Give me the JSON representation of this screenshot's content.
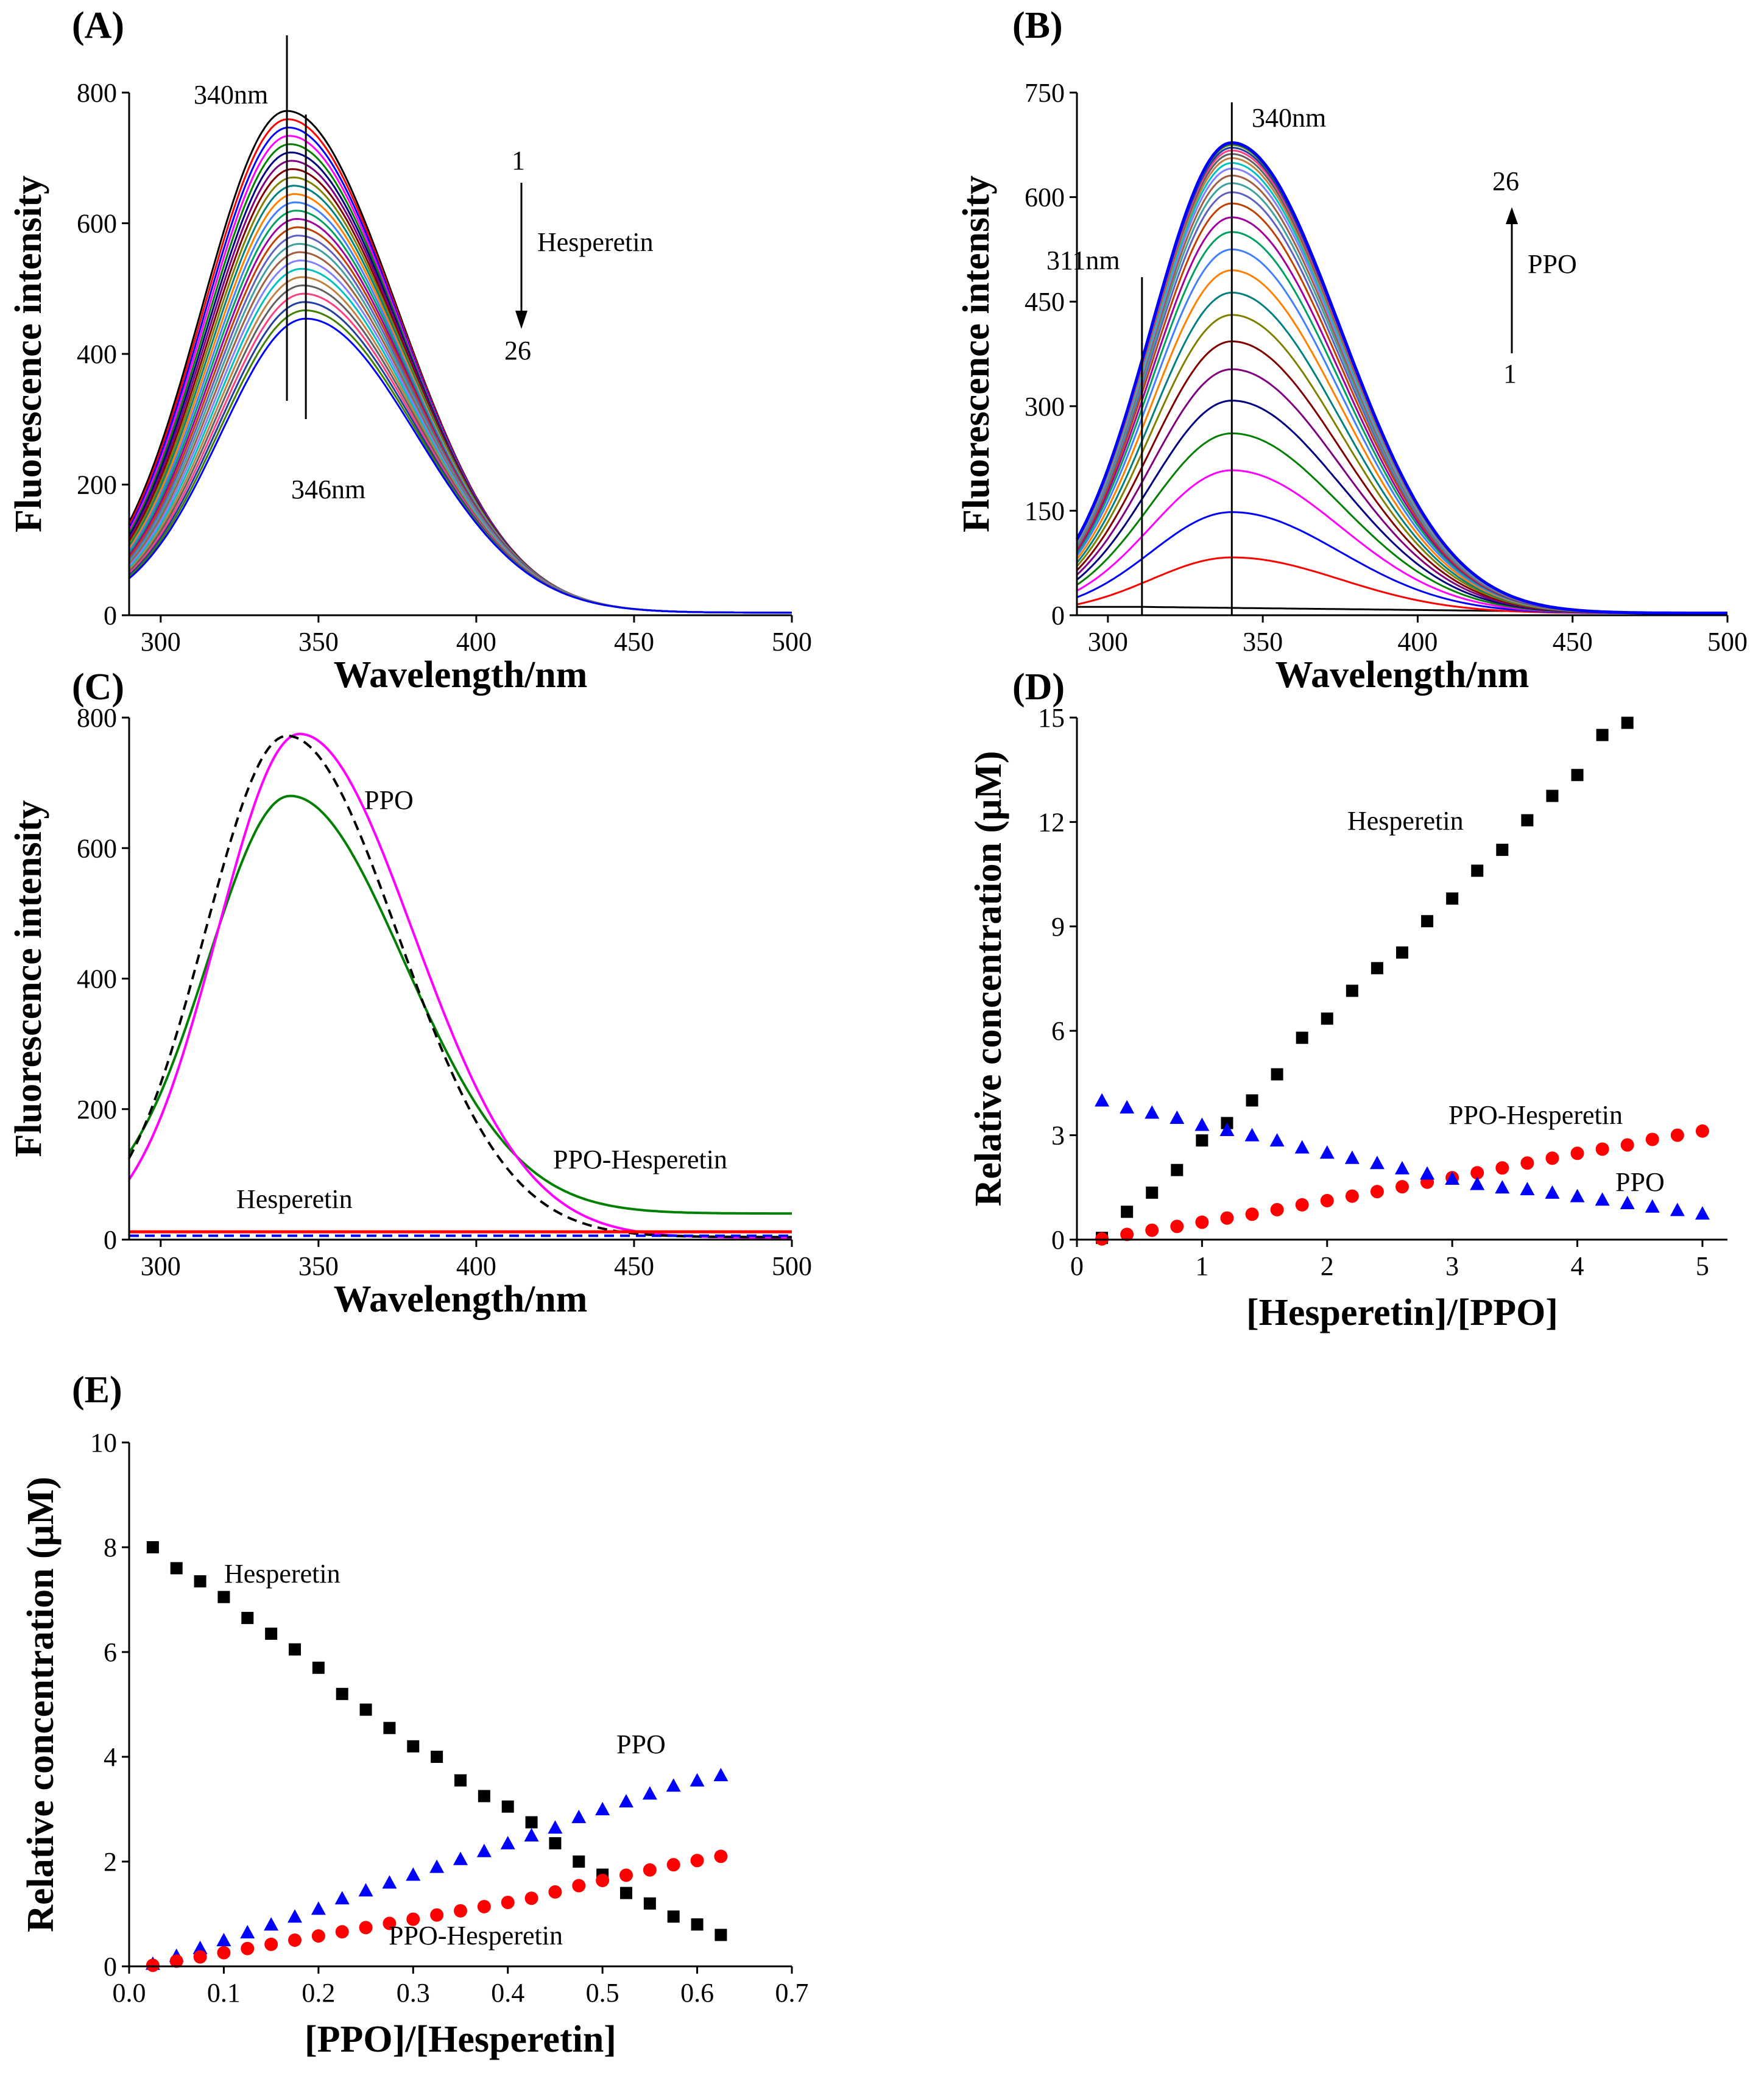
{
  "chart_data": [
    {
      "panel": "(A)",
      "type": "line",
      "xlabel": "Wavelength/nm",
      "ylabel": "Fluorescence intensity",
      "xlim": [
        290,
        500
      ],
      "ylim": [
        0,
        800
      ],
      "xticks": [
        300,
        350,
        400,
        450,
        500
      ],
      "yticks": [
        0,
        200,
        400,
        600,
        800
      ],
      "curve_count": 26,
      "peak_first": 768,
      "peak_last": 450,
      "peak_x_first": 340,
      "peak_x_last": 346,
      "annotations": {
        "peak_left": "340nm",
        "peak_right": "346nm",
        "arrow_start": "1",
        "arrow_end": "26",
        "arrow_label": "Hesperetin"
      }
    },
    {
      "panel": "(B)",
      "type": "line",
      "xlabel": "Wavelength/nm",
      "ylabel": "Fluorescence intensity",
      "xlim": [
        290,
        500
      ],
      "ylim": [
        0,
        750
      ],
      "xticks": [
        300,
        350,
        400,
        450,
        500
      ],
      "yticks": [
        0,
        150,
        300,
        450,
        600,
        750
      ],
      "curve_count": 26,
      "peaks": [
        10,
        80,
        145,
        205,
        258,
        305,
        350,
        390,
        428,
        460,
        492,
        522,
        547,
        568,
        588,
        604,
        617,
        628,
        638,
        646,
        653,
        659,
        664,
        668,
        672,
        675
      ],
      "annotations": {
        "peak_main": "340nm",
        "peak_minor": "311nm",
        "arrow_start": "1",
        "arrow_end": "26",
        "arrow_label": "PPO"
      }
    },
    {
      "panel": "(C)",
      "type": "line",
      "xlabel": "Wavelength/nm",
      "ylabel": "Fluorescence intensity",
      "xlim": [
        290,
        500
      ],
      "ylim": [
        0,
        800
      ],
      "xticks": [
        300,
        350,
        400,
        450,
        500
      ],
      "yticks": [
        0,
        200,
        400,
        600,
        800
      ],
      "series": [
        {
          "name": "PPO",
          "peak": 772,
          "color": "#ff00ff"
        },
        {
          "name": "PPO-Hesperetin",
          "peak": 680,
          "color": "#008000"
        },
        {
          "name": "dashed",
          "peak": 768,
          "color": "#000000"
        },
        {
          "name": "Hesperetin",
          "peak": 12,
          "color": "#ff0000"
        }
      ],
      "annotations": {
        "ppo": "PPO",
        "complex": "PPO-Hesperetin",
        "hesperetin": "Hesperetin"
      }
    },
    {
      "panel": "(D)",
      "type": "scatter",
      "xlabel": "[Hesperetin]/[PPO]",
      "ylabel": "Relative concentration (μM)",
      "xlim": [
        0,
        5.2
      ],
      "ylim": [
        0,
        15
      ],
      "xticks": [
        0,
        1,
        2,
        3,
        4,
        5
      ],
      "yticks": [
        0,
        3,
        6,
        9,
        12,
        15
      ],
      "x": [
        0.2,
        0.4,
        0.6,
        0.8,
        1.0,
        1.2,
        1.4,
        1.6,
        1.8,
        2.0,
        2.2,
        2.4,
        2.6,
        2.8,
        3.0,
        3.2,
        3.4,
        3.6,
        3.8,
        4.0,
        4.2,
        4.4,
        4.6,
        4.8,
        5.0
      ],
      "series": [
        {
          "name": "Hesperetin",
          "color": "#000000",
          "marker": "square",
          "values": [
            0.05,
            0.8,
            1.35,
            2.0,
            2.85,
            3.35,
            4.0,
            4.75,
            5.8,
            6.35,
            7.15,
            7.8,
            8.25,
            9.15,
            9.8,
            10.6,
            11.2,
            12.05,
            12.75,
            13.35,
            14.5,
            14.85
          ]
        },
        {
          "name": "PPO-Hesperetin",
          "color": "#ff0000",
          "marker": "circle",
          "values": [
            0.02,
            0.15,
            0.27,
            0.38,
            0.5,
            0.62,
            0.73,
            0.86,
            1.0,
            1.12,
            1.25,
            1.38,
            1.52,
            1.65,
            1.78,
            1.92,
            2.06,
            2.2,
            2.34,
            2.48,
            2.6,
            2.72,
            2.88,
            3.0,
            3.12
          ]
        },
        {
          "name": "PPO",
          "color": "#0000ff",
          "marker": "triangle",
          "values": [
            4.0,
            3.8,
            3.65,
            3.5,
            3.3,
            3.15,
            3.0,
            2.85,
            2.65,
            2.5,
            2.35,
            2.2,
            2.05,
            1.9,
            1.75,
            1.6,
            1.5,
            1.45,
            1.35,
            1.25,
            1.15,
            1.05,
            0.95,
            0.85,
            0.75
          ]
        }
      ],
      "annotations": {
        "hesperetin": "Hesperetin",
        "complex": "PPO-Hesperetin",
        "ppo": "PPO"
      }
    },
    {
      "panel": "(E)",
      "type": "scatter",
      "xlabel": "[PPO]/[Hesperetin]",
      "ylabel": "Relative concentration (μM)",
      "xlim": [
        0,
        0.7
      ],
      "ylim": [
        0,
        10
      ],
      "xticks": [
        0.0,
        0.1,
        0.2,
        0.3,
        0.4,
        0.5,
        0.6,
        0.7
      ],
      "yticks": [
        0,
        2,
        4,
        6,
        8,
        10
      ],
      "x": [
        0.025,
        0.05,
        0.075,
        0.1,
        0.125,
        0.15,
        0.175,
        0.2,
        0.225,
        0.25,
        0.275,
        0.3,
        0.325,
        0.35,
        0.375,
        0.4,
        0.425,
        0.45,
        0.475,
        0.5,
        0.525,
        0.55,
        0.575,
        0.6,
        0.625
      ],
      "series": [
        {
          "name": "Hesperetin",
          "color": "#000000",
          "marker": "square",
          "values": [
            8.0,
            7.6,
            7.35,
            7.05,
            6.65,
            6.35,
            6.05,
            5.7,
            5.2,
            4.9,
            4.55,
            4.2,
            4.0,
            3.55,
            3.25,
            3.05,
            2.75,
            2.35,
            2.0,
            1.75,
            1.4,
            1.2,
            0.95,
            0.8,
            0.6
          ]
        },
        {
          "name": "PPO",
          "color": "#0000ff",
          "marker": "triangle",
          "values": [
            0.05,
            0.2,
            0.35,
            0.5,
            0.65,
            0.8,
            0.95,
            1.1,
            1.3,
            1.45,
            1.6,
            1.75,
            1.9,
            2.05,
            2.2,
            2.35,
            2.5,
            2.65,
            2.85,
            3.0,
            3.15,
            3.3,
            3.45,
            3.55,
            3.65
          ]
        },
        {
          "name": "PPO-Hesperetin",
          "color": "#ff0000",
          "marker": "circle",
          "values": [
            0.02,
            0.1,
            0.18,
            0.26,
            0.34,
            0.42,
            0.5,
            0.58,
            0.66,
            0.74,
            0.82,
            0.9,
            0.98,
            1.06,
            1.14,
            1.22,
            1.3,
            1.42,
            1.54,
            1.64,
            1.74,
            1.84,
            1.94,
            2.02,
            2.1
          ]
        }
      ],
      "annotations": {
        "hesperetin": "Hesperetin",
        "ppo": "PPO",
        "complex": "PPO-Hesperetin"
      }
    }
  ]
}
